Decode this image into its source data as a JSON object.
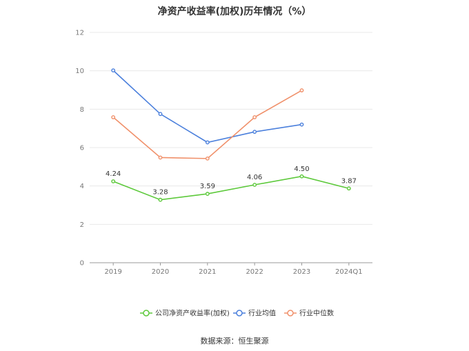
{
  "chart_data": {
    "type": "line",
    "title": "净资产收益率(加权)历年情况（%）",
    "categories": [
      "2019",
      "2020",
      "2021",
      "2022",
      "2023",
      "2024Q1"
    ],
    "ylim": [
      0,
      12
    ],
    "yticks": [
      0,
      2,
      4,
      6,
      8,
      10,
      12
    ],
    "grid": true,
    "legend_position": "bottom-center",
    "series": [
      {
        "name": "公司净资产收益率(加权)",
        "color": "#5cc93a",
        "values": [
          4.24,
          3.28,
          3.59,
          4.06,
          4.5,
          3.87
        ],
        "labels": [
          "4.24",
          "3.28",
          "3.59",
          "4.06",
          "4.50",
          "3.87"
        ]
      },
      {
        "name": "行业均值",
        "color": "#4a7fdc",
        "values": [
          10.02,
          7.75,
          6.27,
          6.82,
          7.2,
          null
        ]
      },
      {
        "name": "行业中位数",
        "color": "#f0906a",
        "values": [
          7.58,
          5.48,
          5.43,
          7.58,
          8.98,
          null
        ]
      }
    ]
  },
  "source_text": "数据来源：恒生聚源"
}
